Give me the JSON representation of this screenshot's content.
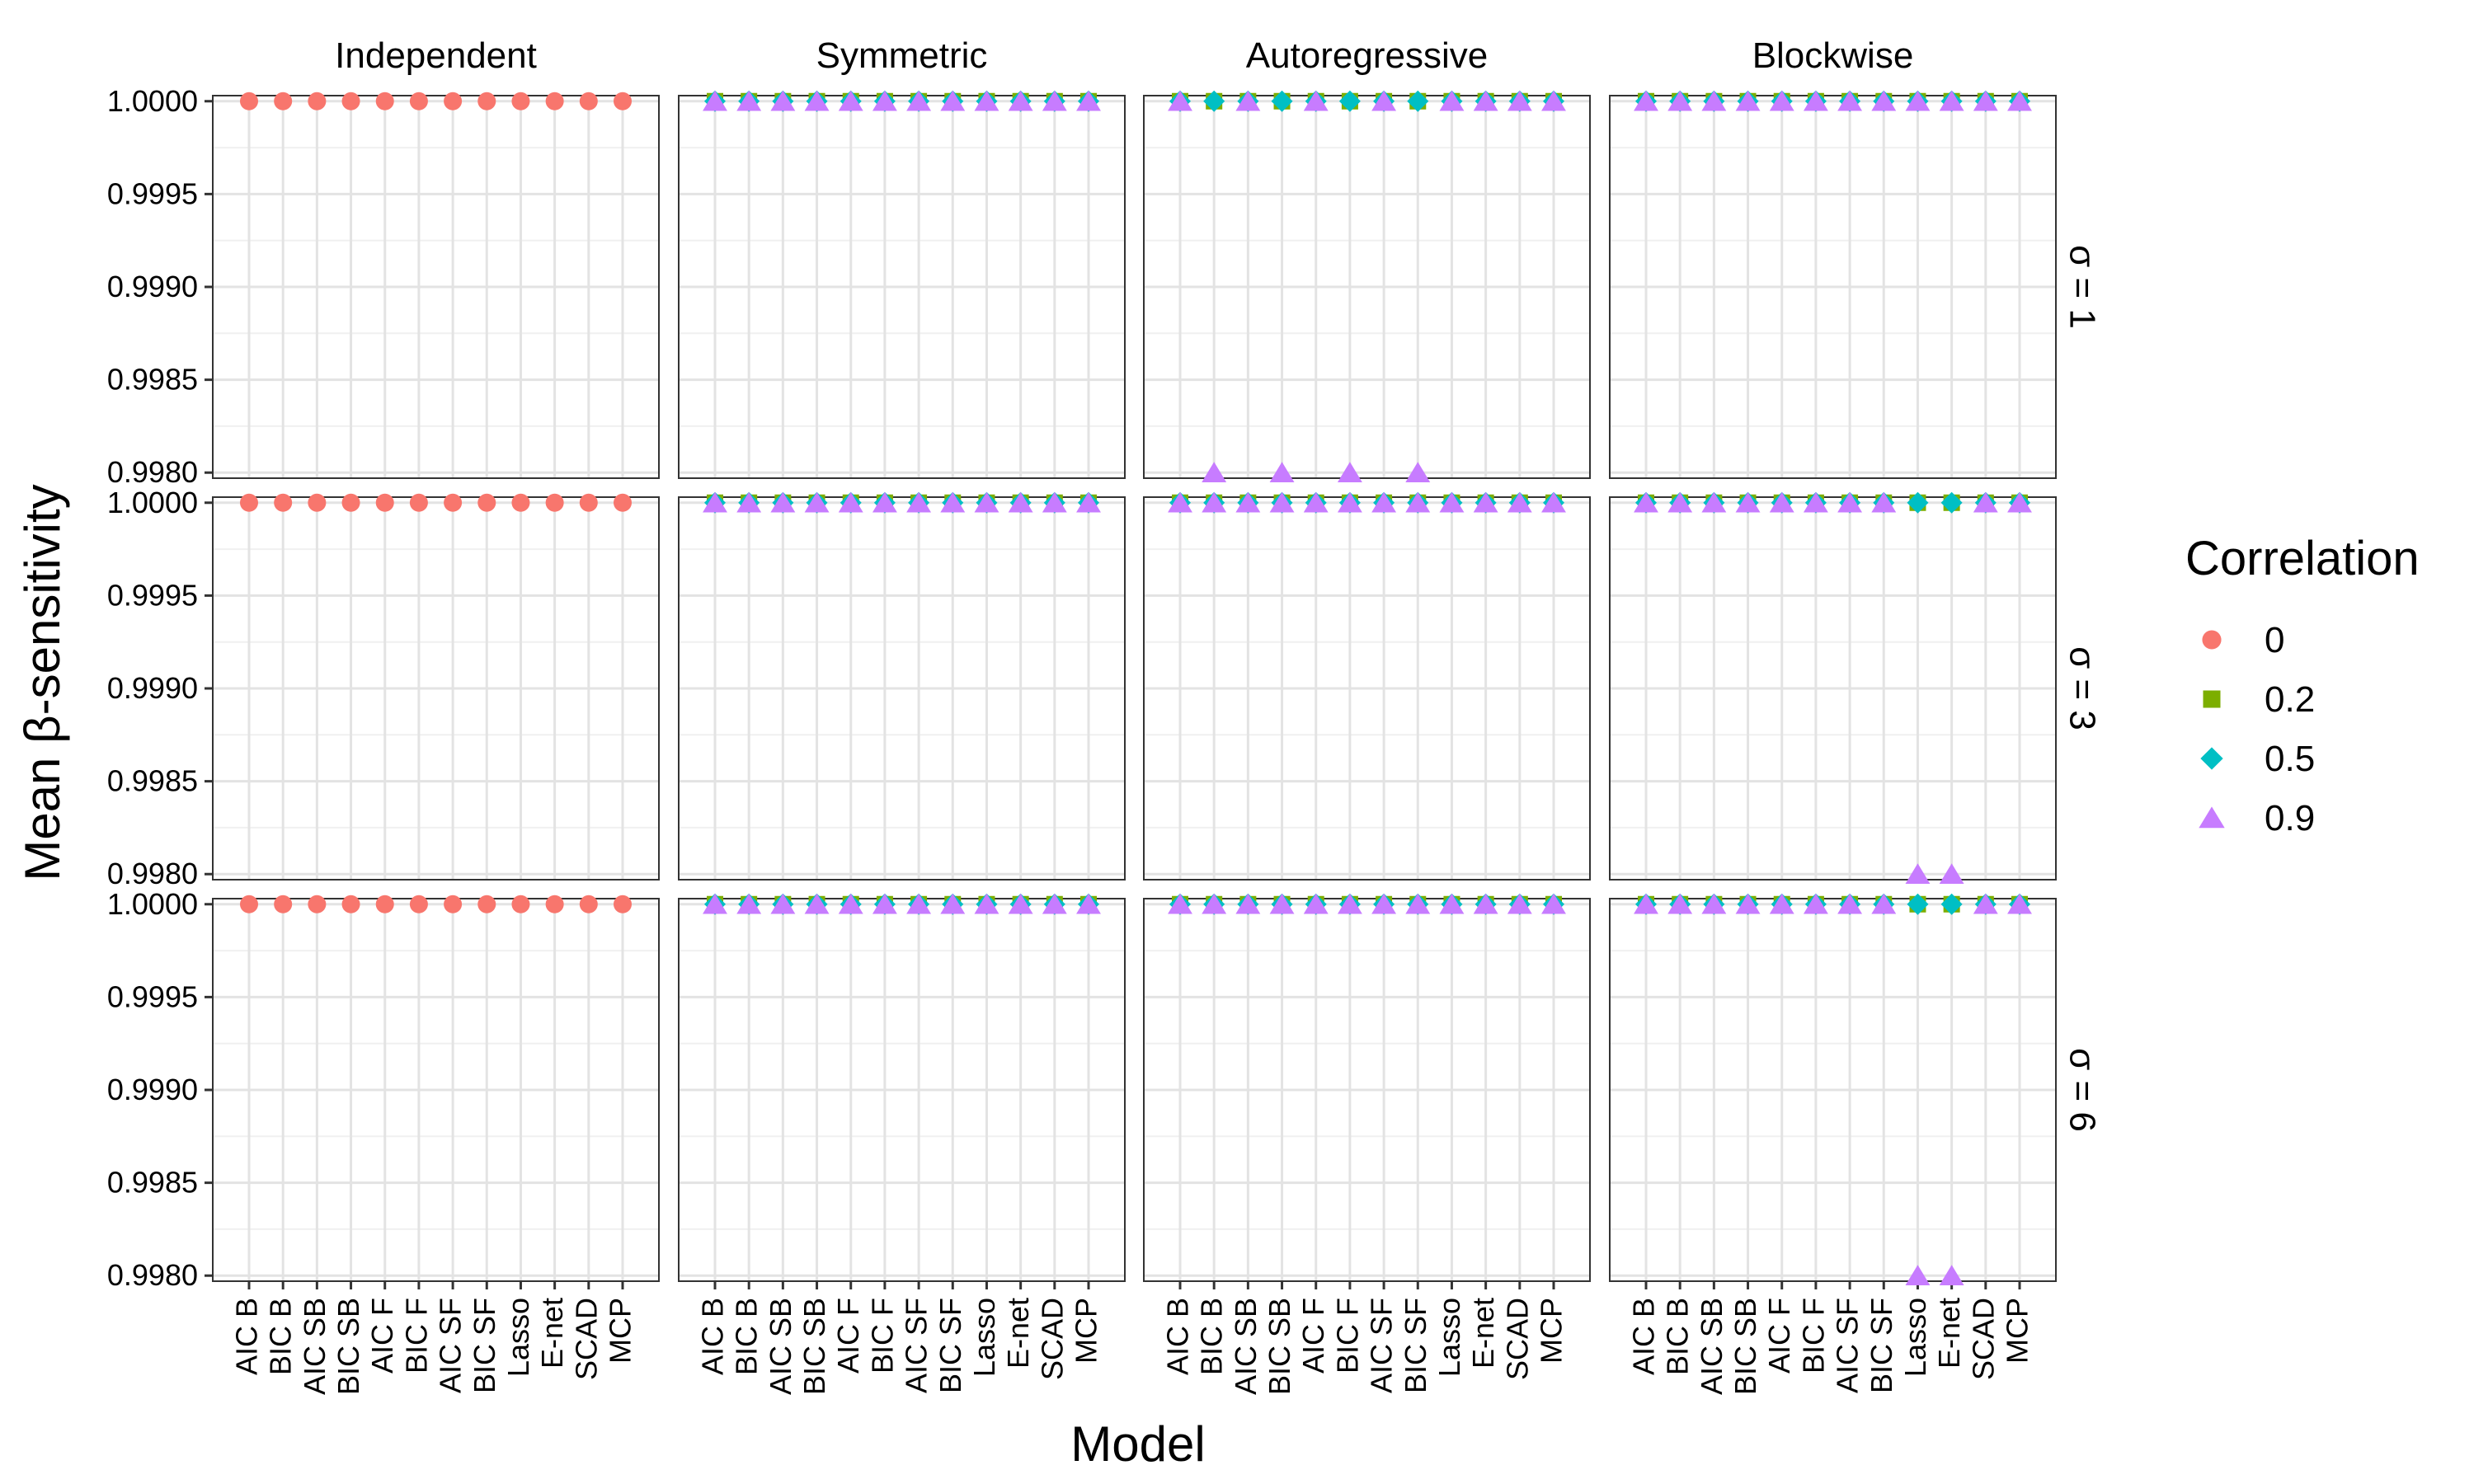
{
  "chart_data": {
    "type": "scatter",
    "xlabel": "Model",
    "ylabel": "Mean β-sensitivity",
    "ylim": [
      0.99797,
      1.00003
    ],
    "yticks": [
      "0.9980",
      "0.9985",
      "0.9990",
      "0.9995",
      "1.0000"
    ],
    "grid": true,
    "legend": {
      "title": "Correlation",
      "position": "right",
      "entries": [
        {
          "label": "0",
          "color": "#F8766D",
          "shape": "circle"
        },
        {
          "label": "0.2",
          "color": "#7CAE00",
          "shape": "square"
        },
        {
          "label": "0.5",
          "color": "#00BFC4",
          "shape": "diamond"
        },
        {
          "label": "0.9",
          "color": "#C77CFF",
          "shape": "triangle"
        }
      ]
    },
    "x": [
      "AIC B",
      "BIC B",
      "AIC SB",
      "BIC SB",
      "AIC F",
      "BIC F",
      "AIC SF",
      "BIC SF",
      "Lasso",
      "E-net",
      "SCAD",
      "MCP"
    ],
    "columns": [
      "Independent",
      "Symmetric",
      "Autoregressive",
      "Blockwise"
    ],
    "rows": [
      "σ = 1",
      "σ = 3",
      "σ = 6"
    ],
    "panels": [
      {
        "column": "Independent",
        "row": "σ = 1",
        "series": [
          {
            "name": "0",
            "values": [
              1,
              1,
              1,
              1,
              1,
              1,
              1,
              1,
              1,
              1,
              1,
              1
            ]
          }
        ]
      },
      {
        "column": "Symmetric",
        "row": "σ = 1",
        "series": [
          {
            "name": "0.2",
            "values": [
              1,
              1,
              1,
              1,
              1,
              1,
              1,
              1,
              1,
              1,
              1,
              1
            ]
          },
          {
            "name": "0.5",
            "values": [
              1,
              1,
              1,
              1,
              1,
              1,
              1,
              1,
              1,
              1,
              1,
              1
            ]
          },
          {
            "name": "0.9",
            "values": [
              1,
              1,
              1,
              1,
              1,
              1,
              1,
              1,
              1,
              1,
              1,
              1
            ]
          }
        ]
      },
      {
        "column": "Autoregressive",
        "row": "σ = 1",
        "series": [
          {
            "name": "0.2",
            "values": [
              1,
              1,
              1,
              1,
              1,
              1,
              1,
              1,
              1,
              1,
              1,
              1
            ]
          },
          {
            "name": "0.5",
            "values": [
              1,
              1,
              1,
              1,
              1,
              1,
              1,
              1,
              1,
              1,
              1,
              1
            ]
          },
          {
            "name": "0.9",
            "values": [
              1,
              0.998,
              1,
              0.998,
              1,
              0.998,
              1,
              0.998,
              1,
              1,
              1,
              1
            ]
          }
        ]
      },
      {
        "column": "Blockwise",
        "row": "σ = 1",
        "series": [
          {
            "name": "0.2",
            "values": [
              1,
              1,
              1,
              1,
              1,
              1,
              1,
              1,
              1,
              1,
              1,
              1
            ]
          },
          {
            "name": "0.5",
            "values": [
              1,
              1,
              1,
              1,
              1,
              1,
              1,
              1,
              1,
              1,
              1,
              1
            ]
          },
          {
            "name": "0.9",
            "values": [
              1,
              1,
              1,
              1,
              1,
              1,
              1,
              1,
              1,
              1,
              1,
              1
            ]
          }
        ]
      },
      {
        "column": "Independent",
        "row": "σ = 3",
        "series": [
          {
            "name": "0",
            "values": [
              1,
              1,
              1,
              1,
              1,
              1,
              1,
              1,
              1,
              1,
              1,
              1
            ]
          }
        ]
      },
      {
        "column": "Symmetric",
        "row": "σ = 3",
        "series": [
          {
            "name": "0.2",
            "values": [
              1,
              1,
              1,
              1,
              1,
              1,
              1,
              1,
              1,
              1,
              1,
              1
            ]
          },
          {
            "name": "0.5",
            "values": [
              1,
              1,
              1,
              1,
              1,
              1,
              1,
              1,
              1,
              1,
              1,
              1
            ]
          },
          {
            "name": "0.9",
            "values": [
              1,
              1,
              1,
              1,
              1,
              1,
              1,
              1,
              1,
              1,
              1,
              1
            ]
          }
        ]
      },
      {
        "column": "Autoregressive",
        "row": "σ = 3",
        "series": [
          {
            "name": "0.2",
            "values": [
              1,
              1,
              1,
              1,
              1,
              1,
              1,
              1,
              1,
              1,
              1,
              1
            ]
          },
          {
            "name": "0.5",
            "values": [
              1,
              1,
              1,
              1,
              1,
              1,
              1,
              1,
              1,
              1,
              1,
              1
            ]
          },
          {
            "name": "0.9",
            "values": [
              1,
              1,
              1,
              1,
              1,
              1,
              1,
              1,
              1,
              1,
              1,
              1
            ]
          }
        ]
      },
      {
        "column": "Blockwise",
        "row": "σ = 3",
        "series": [
          {
            "name": "0.2",
            "values": [
              1,
              1,
              1,
              1,
              1,
              1,
              1,
              1,
              1,
              1,
              1,
              1
            ]
          },
          {
            "name": "0.5",
            "values": [
              1,
              1,
              1,
              1,
              1,
              1,
              1,
              1,
              1,
              1,
              1,
              1
            ]
          },
          {
            "name": "0.9",
            "values": [
              1,
              1,
              1,
              1,
              1,
              1,
              1,
              1,
              0.998,
              0.998,
              1,
              1
            ]
          }
        ]
      },
      {
        "column": "Independent",
        "row": "σ = 6",
        "series": [
          {
            "name": "0",
            "values": [
              1,
              1,
              1,
              1,
              1,
              1,
              1,
              1,
              1,
              1,
              1,
              1
            ]
          }
        ]
      },
      {
        "column": "Symmetric",
        "row": "σ = 6",
        "series": [
          {
            "name": "0.2",
            "values": [
              1,
              1,
              1,
              1,
              1,
              1,
              1,
              1,
              1,
              1,
              1,
              1
            ]
          },
          {
            "name": "0.5",
            "values": [
              1,
              1,
              1,
              1,
              1,
              1,
              1,
              1,
              1,
              1,
              1,
              1
            ]
          },
          {
            "name": "0.9",
            "values": [
              1,
              1,
              1,
              1,
              1,
              1,
              1,
              1,
              1,
              1,
              1,
              1
            ]
          }
        ]
      },
      {
        "column": "Autoregressive",
        "row": "σ = 6",
        "series": [
          {
            "name": "0.2",
            "values": [
              1,
              1,
              1,
              1,
              1,
              1,
              1,
              1,
              1,
              1,
              1,
              1
            ]
          },
          {
            "name": "0.5",
            "values": [
              1,
              1,
              1,
              1,
              1,
              1,
              1,
              1,
              1,
              1,
              1,
              1
            ]
          },
          {
            "name": "0.9",
            "values": [
              1,
              1,
              1,
              1,
              1,
              1,
              1,
              1,
              1,
              1,
              1,
              1
            ]
          }
        ]
      },
      {
        "column": "Blockwise",
        "row": "σ = 6",
        "series": [
          {
            "name": "0.2",
            "values": [
              1,
              1,
              1,
              1,
              1,
              1,
              1,
              1,
              1,
              1,
              1,
              1
            ]
          },
          {
            "name": "0.5",
            "values": [
              1,
              1,
              1,
              1,
              1,
              1,
              1,
              1,
              1,
              1,
              1,
              1
            ]
          },
          {
            "name": "0.9",
            "values": [
              1,
              1,
              1,
              1,
              1,
              1,
              1,
              1,
              0.998,
              0.998,
              1,
              1
            ]
          }
        ]
      }
    ]
  }
}
